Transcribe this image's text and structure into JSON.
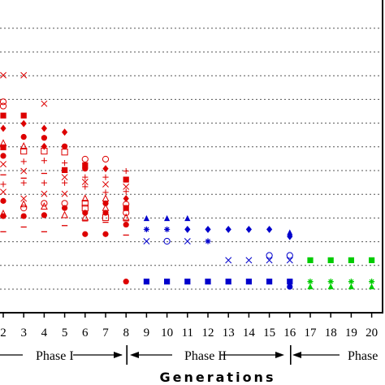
{
  "chart_data": {
    "type": "scatter",
    "title": "",
    "xlabel": "Generations",
    "ylabel": "",
    "x_ticks": [
      "2",
      "3",
      "4",
      "5",
      "6",
      "7",
      "8",
      "9",
      "10",
      "11",
      "12",
      "13",
      "14",
      "15",
      "16",
      "17",
      "18",
      "19",
      "20",
      "2"
    ],
    "y_gridlines": 12,
    "grid": "horizontal-dotted",
    "phases": [
      {
        "label": "Phase I",
        "generations": [
          1,
          8
        ],
        "color": "#dd0000"
      },
      {
        "label": "Phase II",
        "generations": [
          8,
          16
        ],
        "color": "#0000cc"
      },
      {
        "label": "Phase",
        "generations": [
          16,
          21
        ],
        "color": "#00cc00"
      }
    ],
    "level_unit": "gridline index from bottom (0 = bottom gridline)",
    "points": [
      {
        "gen": 2,
        "phase": 0,
        "marker": "x",
        "level": 9.02
      },
      {
        "gen": 2,
        "phase": 0,
        "marker": "circle-open",
        "level": 7.9
      },
      {
        "gen": 2,
        "phase": 0,
        "marker": "circle-open",
        "level": 7.72
      },
      {
        "gen": 2,
        "phase": 0,
        "marker": "square",
        "level": 7.32
      },
      {
        "gen": 2,
        "phase": 0,
        "marker": "diamond",
        "level": 6.78
      },
      {
        "gen": 2,
        "phase": 0,
        "marker": "triangle-open",
        "level": 6.15
      },
      {
        "gen": 2,
        "phase": 0,
        "marker": "square",
        "level": 5.98
      },
      {
        "gen": 2,
        "phase": 0,
        "marker": "circle",
        "level": 5.62
      },
      {
        "gen": 2,
        "phase": 0,
        "marker": "x",
        "level": 5.27
      },
      {
        "gen": 2,
        "phase": 0,
        "marker": "dash",
        "level": 4.82
      },
      {
        "gen": 2,
        "phase": 0,
        "marker": "plus",
        "level": 4.42
      },
      {
        "gen": 2,
        "phase": 0,
        "marker": "x",
        "level": 4.1
      },
      {
        "gen": 2,
        "phase": 0,
        "marker": "circle",
        "level": 3.72
      },
      {
        "gen": 2,
        "phase": 0,
        "marker": "triangle-open",
        "level": 3.18
      },
      {
        "gen": 2,
        "phase": 0,
        "marker": "circle",
        "level": 3.08
      },
      {
        "gen": 2,
        "phase": 0,
        "marker": "dash",
        "level": 2.42
      },
      {
        "gen": 3,
        "phase": 0,
        "marker": "x",
        "level": 9.02
      },
      {
        "gen": 3,
        "phase": 0,
        "marker": "square",
        "level": 7.32
      },
      {
        "gen": 3,
        "phase": 0,
        "marker": "diamond",
        "level": 6.98
      },
      {
        "gen": 3,
        "phase": 0,
        "marker": "circle",
        "level": 6.42
      },
      {
        "gen": 3,
        "phase": 0,
        "marker": "triangle-open",
        "level": 6.02
      },
      {
        "gen": 3,
        "phase": 0,
        "marker": "square-open",
        "level": 5.82
      },
      {
        "gen": 3,
        "phase": 0,
        "marker": "plus",
        "level": 5.38
      },
      {
        "gen": 3,
        "phase": 0,
        "marker": "x",
        "level": 4.98
      },
      {
        "gen": 3,
        "phase": 0,
        "marker": "dash",
        "level": 4.68
      },
      {
        "gen": 3,
        "phase": 0,
        "marker": "plus",
        "level": 4.48
      },
      {
        "gen": 3,
        "phase": 0,
        "marker": "x",
        "level": 3.82
      },
      {
        "gen": 3,
        "phase": 0,
        "marker": "triangle-open",
        "level": 3.58
      },
      {
        "gen": 3,
        "phase": 0,
        "marker": "circle-open",
        "level": 3.42
      },
      {
        "gen": 3,
        "phase": 0,
        "marker": "circle",
        "level": 3.08
      },
      {
        "gen": 3,
        "phase": 0,
        "marker": "dash",
        "level": 2.62
      },
      {
        "gen": 4,
        "phase": 0,
        "marker": "x",
        "level": 7.82
      },
      {
        "gen": 4,
        "phase": 0,
        "marker": "diamond",
        "level": 6.78
      },
      {
        "gen": 4,
        "phase": 0,
        "marker": "circle",
        "level": 6.38
      },
      {
        "gen": 4,
        "phase": 0,
        "marker": "diamond",
        "level": 6.02
      },
      {
        "gen": 4,
        "phase": 0,
        "marker": "square-open",
        "level": 5.82
      },
      {
        "gen": 4,
        "phase": 0,
        "marker": "plus",
        "level": 5.42
      },
      {
        "gen": 4,
        "phase": 0,
        "marker": "dash",
        "level": 4.88
      },
      {
        "gen": 4,
        "phase": 0,
        "marker": "plus",
        "level": 4.48
      },
      {
        "gen": 4,
        "phase": 0,
        "marker": "x",
        "level": 4.02
      },
      {
        "gen": 4,
        "phase": 0,
        "marker": "circle-open",
        "level": 3.62
      },
      {
        "gen": 4,
        "phase": 0,
        "marker": "triangle-open",
        "level": 3.48
      },
      {
        "gen": 4,
        "phase": 0,
        "marker": "circle",
        "level": 3.12
      },
      {
        "gen": 4,
        "phase": 0,
        "marker": "dash",
        "level": 2.42
      },
      {
        "gen": 5,
        "phase": 0,
        "marker": "diamond",
        "level": 6.62
      },
      {
        "gen": 5,
        "phase": 0,
        "marker": "circle",
        "level": 6.02
      },
      {
        "gen": 5,
        "phase": 0,
        "marker": "square-open",
        "level": 5.78
      },
      {
        "gen": 5,
        "phase": 0,
        "marker": "plus",
        "level": 5.32
      },
      {
        "gen": 5,
        "phase": 0,
        "marker": "square",
        "level": 5.02
      },
      {
        "gen": 5,
        "phase": 0,
        "marker": "dash",
        "level": 4.92
      },
      {
        "gen": 5,
        "phase": 0,
        "marker": "x",
        "level": 4.72
      },
      {
        "gen": 5,
        "phase": 0,
        "marker": "plus",
        "level": 4.48
      },
      {
        "gen": 5,
        "phase": 0,
        "marker": "x",
        "level": 4.02
      },
      {
        "gen": 5,
        "phase": 0,
        "marker": "circle-open",
        "level": 3.62
      },
      {
        "gen": 5,
        "phase": 0,
        "marker": "circle",
        "level": 3.42
      },
      {
        "gen": 5,
        "phase": 0,
        "marker": "triangle-open",
        "level": 3.12
      },
      {
        "gen": 5,
        "phase": 0,
        "marker": "dash",
        "level": 2.68
      },
      {
        "gen": 6,
        "phase": 0,
        "marker": "circle-open",
        "level": 5.48
      },
      {
        "gen": 6,
        "phase": 0,
        "marker": "square",
        "level": 5.22
      },
      {
        "gen": 6,
        "phase": 0,
        "marker": "circle",
        "level": 5.08
      },
      {
        "gen": 6,
        "phase": 0,
        "marker": "plus",
        "level": 4.72
      },
      {
        "gen": 6,
        "phase": 0,
        "marker": "x",
        "level": 4.52
      },
      {
        "gen": 6,
        "phase": 0,
        "marker": "plus",
        "level": 4.32
      },
      {
        "gen": 6,
        "phase": 0,
        "marker": "triangle-open",
        "level": 3.82
      },
      {
        "gen": 6,
        "phase": 0,
        "marker": "square-open",
        "level": 3.62
      },
      {
        "gen": 6,
        "phase": 0,
        "marker": "square-open",
        "level": 3.42
      },
      {
        "gen": 6,
        "phase": 0,
        "marker": "circle",
        "level": 3.22
      },
      {
        "gen": 6,
        "phase": 0,
        "marker": "triangle-open",
        "level": 3.02
      },
      {
        "gen": 6,
        "phase": 0,
        "marker": "dash",
        "level": 2.88
      },
      {
        "gen": 6,
        "phase": 0,
        "marker": "circle",
        "level": 2.32
      },
      {
        "gen": 7,
        "phase": 0,
        "marker": "circle-open",
        "level": 5.48
      },
      {
        "gen": 7,
        "phase": 0,
        "marker": "diamond",
        "level": 5.08
      },
      {
        "gen": 7,
        "phase": 0,
        "marker": "plus",
        "level": 4.72
      },
      {
        "gen": 7,
        "phase": 0,
        "marker": "x",
        "level": 4.42
      },
      {
        "gen": 7,
        "phase": 0,
        "marker": "plus",
        "level": 4.08
      },
      {
        "gen": 7,
        "phase": 0,
        "marker": "triangle-open",
        "level": 3.82
      },
      {
        "gen": 7,
        "phase": 0,
        "marker": "circle",
        "level": 3.62
      },
      {
        "gen": 7,
        "phase": 0,
        "marker": "triangle-open",
        "level": 3.42
      },
      {
        "gen": 7,
        "phase": 0,
        "marker": "circle",
        "level": 3.22
      },
      {
        "gen": 7,
        "phase": 0,
        "marker": "square-open",
        "level": 3.02
      },
      {
        "gen": 7,
        "phase": 0,
        "marker": "dash",
        "level": 2.82
      },
      {
        "gen": 7,
        "phase": 0,
        "marker": "circle",
        "level": 2.32
      },
      {
        "gen": 8,
        "phase": 0,
        "marker": "plus",
        "level": 4.98
      },
      {
        "gen": 8,
        "phase": 0,
        "marker": "square",
        "level": 4.62
      },
      {
        "gen": 8,
        "phase": 0,
        "marker": "x",
        "level": 4.32
      },
      {
        "gen": 8,
        "phase": 0,
        "marker": "plus",
        "level": 4.12
      },
      {
        "gen": 8,
        "phase": 0,
        "marker": "diamond",
        "level": 3.82
      },
      {
        "gen": 8,
        "phase": 0,
        "marker": "circle-open",
        "level": 3.58
      },
      {
        "gen": 8,
        "phase": 0,
        "marker": "square",
        "level": 3.42
      },
      {
        "gen": 8,
        "phase": 0,
        "marker": "circle-open",
        "level": 3.22
      },
      {
        "gen": 8,
        "phase": 0,
        "marker": "triangle-open",
        "level": 3.02
      },
      {
        "gen": 8,
        "phase": 0,
        "marker": "dash",
        "level": 2.88
      },
      {
        "gen": 8,
        "phase": 0,
        "marker": "circle",
        "level": 2.72
      },
      {
        "gen": 8,
        "phase": 0,
        "marker": "dash",
        "level": 2.28
      },
      {
        "gen": 8,
        "phase": 0,
        "marker": "circle",
        "level": 0.32
      },
      {
        "gen": 9,
        "phase": 1,
        "marker": "triangle",
        "level": 2.98
      },
      {
        "gen": 9,
        "phase": 1,
        "marker": "asterisk",
        "level": 2.52
      },
      {
        "gen": 9,
        "phase": 1,
        "marker": "x",
        "level": 2.02
      },
      {
        "gen": 9,
        "phase": 1,
        "marker": "square",
        "level": 0.32
      },
      {
        "gen": 10,
        "phase": 1,
        "marker": "triangle",
        "level": 2.98
      },
      {
        "gen": 10,
        "phase": 1,
        "marker": "asterisk",
        "level": 2.52
      },
      {
        "gen": 10,
        "phase": 1,
        "marker": "circle-open",
        "level": 2.02
      },
      {
        "gen": 10,
        "phase": 1,
        "marker": "square",
        "level": 0.32
      },
      {
        "gen": 11,
        "phase": 1,
        "marker": "triangle",
        "level": 2.98
      },
      {
        "gen": 11,
        "phase": 1,
        "marker": "diamond",
        "level": 2.52
      },
      {
        "gen": 11,
        "phase": 1,
        "marker": "x",
        "level": 2.02
      },
      {
        "gen": 11,
        "phase": 1,
        "marker": "square",
        "level": 0.32
      },
      {
        "gen": 12,
        "phase": 1,
        "marker": "diamond",
        "level": 2.52
      },
      {
        "gen": 12,
        "phase": 1,
        "marker": "asterisk",
        "level": 2.02
      },
      {
        "gen": 12,
        "phase": 1,
        "marker": "square",
        "level": 0.32
      },
      {
        "gen": 13,
        "phase": 1,
        "marker": "diamond",
        "level": 2.52
      },
      {
        "gen": 13,
        "phase": 1,
        "marker": "x",
        "level": 1.22
      },
      {
        "gen": 13,
        "phase": 1,
        "marker": "square",
        "level": 0.32
      },
      {
        "gen": 14,
        "phase": 1,
        "marker": "diamond",
        "level": 2.52
      },
      {
        "gen": 14,
        "phase": 1,
        "marker": "x",
        "level": 1.22
      },
      {
        "gen": 14,
        "phase": 1,
        "marker": "square",
        "level": 0.32
      },
      {
        "gen": 15,
        "phase": 1,
        "marker": "diamond",
        "level": 2.52
      },
      {
        "gen": 15,
        "phase": 1,
        "marker": "circle-open",
        "level": 1.42
      },
      {
        "gen": 15,
        "phase": 1,
        "marker": "x",
        "level": 1.22
      },
      {
        "gen": 15,
        "phase": 1,
        "marker": "square",
        "level": 0.32
      },
      {
        "gen": 16,
        "phase": 1,
        "marker": "triangle",
        "level": 2.38
      },
      {
        "gen": 16,
        "phase": 1,
        "marker": "diamond",
        "level": 2.22
      },
      {
        "gen": 16,
        "phase": 1,
        "marker": "circle-open",
        "level": 1.42
      },
      {
        "gen": 16,
        "phase": 1,
        "marker": "x",
        "level": 1.22
      },
      {
        "gen": 16,
        "phase": 1,
        "marker": "square",
        "level": 0.32
      },
      {
        "gen": 16,
        "phase": 1,
        "marker": "circle",
        "level": 0.1
      },
      {
        "gen": 17,
        "phase": 2,
        "marker": "square",
        "level": 1.22
      },
      {
        "gen": 17,
        "phase": 2,
        "marker": "asterisk",
        "level": 0.32
      },
      {
        "gen": 17,
        "phase": 2,
        "marker": "triangle",
        "level": 0.1
      },
      {
        "gen": 18,
        "phase": 2,
        "marker": "square",
        "level": 1.22
      },
      {
        "gen": 18,
        "phase": 2,
        "marker": "asterisk",
        "level": 0.32
      },
      {
        "gen": 18,
        "phase": 2,
        "marker": "triangle",
        "level": 0.1
      },
      {
        "gen": 19,
        "phase": 2,
        "marker": "square",
        "level": 1.22
      },
      {
        "gen": 19,
        "phase": 2,
        "marker": "asterisk",
        "level": 0.32
      },
      {
        "gen": 19,
        "phase": 2,
        "marker": "triangle",
        "level": 0.1
      },
      {
        "gen": 20,
        "phase": 2,
        "marker": "square",
        "level": 1.22
      },
      {
        "gen": 20,
        "phase": 2,
        "marker": "asterisk",
        "level": 0.32
      },
      {
        "gen": 20,
        "phase": 2,
        "marker": "triangle",
        "level": 0.1
      }
    ]
  }
}
